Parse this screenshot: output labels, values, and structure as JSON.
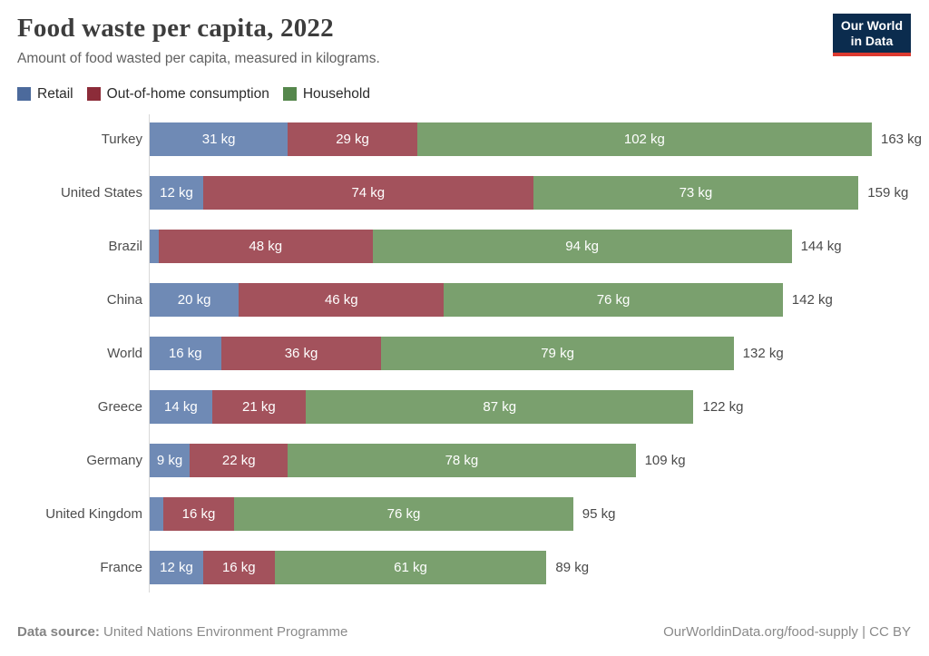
{
  "header": {
    "title": "Food waste per capita, 2022",
    "subtitle": "Amount of food wasted per capita, measured in kilograms.",
    "logo": {
      "line1": "Our World",
      "line2": "in Data"
    },
    "logo_colors": {
      "background": "#0b2c4e",
      "underline": "#dc3a30"
    }
  },
  "legend": [
    {
      "label": "Retail",
      "color": "#4C6A9C"
    },
    {
      "label": "Out-of-home consumption",
      "color": "#8C2C39"
    },
    {
      "label": "Household",
      "color": "#55874C"
    }
  ],
  "chart_data": {
    "type": "bar",
    "orientation": "horizontal",
    "stacked": true,
    "grid": false,
    "legend_position": "top",
    "value_suffix": " kg",
    "xmax": 163,
    "categories": [
      "Turkey",
      "United States",
      "Brazil",
      "China",
      "World",
      "Greece",
      "Germany",
      "United Kingdom",
      "France"
    ],
    "series": [
      {
        "name": "Retail",
        "color": "#4C6A9C",
        "bar_color": "#6F8AB5",
        "values": [
          31,
          12,
          2,
          20,
          16,
          14,
          9,
          3,
          12
        ],
        "labels": [
          "31 kg",
          "12 kg",
          "",
          "20 kg",
          "16 kg",
          "14 kg",
          "9 kg",
          "",
          "12 kg"
        ]
      },
      {
        "name": "Out-of-home consumption",
        "color": "#8C2C39",
        "bar_color": "#A3525C",
        "values": [
          29,
          74,
          48,
          46,
          36,
          21,
          22,
          16,
          16
        ],
        "labels": [
          "29 kg",
          "74 kg",
          "48 kg",
          "46 kg",
          "36 kg",
          "21 kg",
          "22 kg",
          "16 kg",
          "16 kg"
        ]
      },
      {
        "name": "Household",
        "color": "#55874C",
        "bar_color": "#7AA06E",
        "values": [
          102,
          73,
          94,
          76,
          79,
          87,
          78,
          76,
          61
        ],
        "labels": [
          "102 kg",
          "73 kg",
          "94 kg",
          "76 kg",
          "79 kg",
          "87 kg",
          "78 kg",
          "76 kg",
          "61 kg"
        ]
      }
    ],
    "totals": [
      163,
      159,
      144,
      142,
      132,
      122,
      109,
      95,
      89
    ],
    "total_labels": [
      "163 kg",
      "159 kg",
      "144 kg",
      "142 kg",
      "132 kg",
      "122 kg",
      "109 kg",
      "95 kg",
      "89 kg"
    ]
  },
  "footer": {
    "source_label": "Data source:",
    "source_value": "United Nations Environment Programme",
    "credit": "OurWorldinData.org/food-supply | CC BY"
  }
}
